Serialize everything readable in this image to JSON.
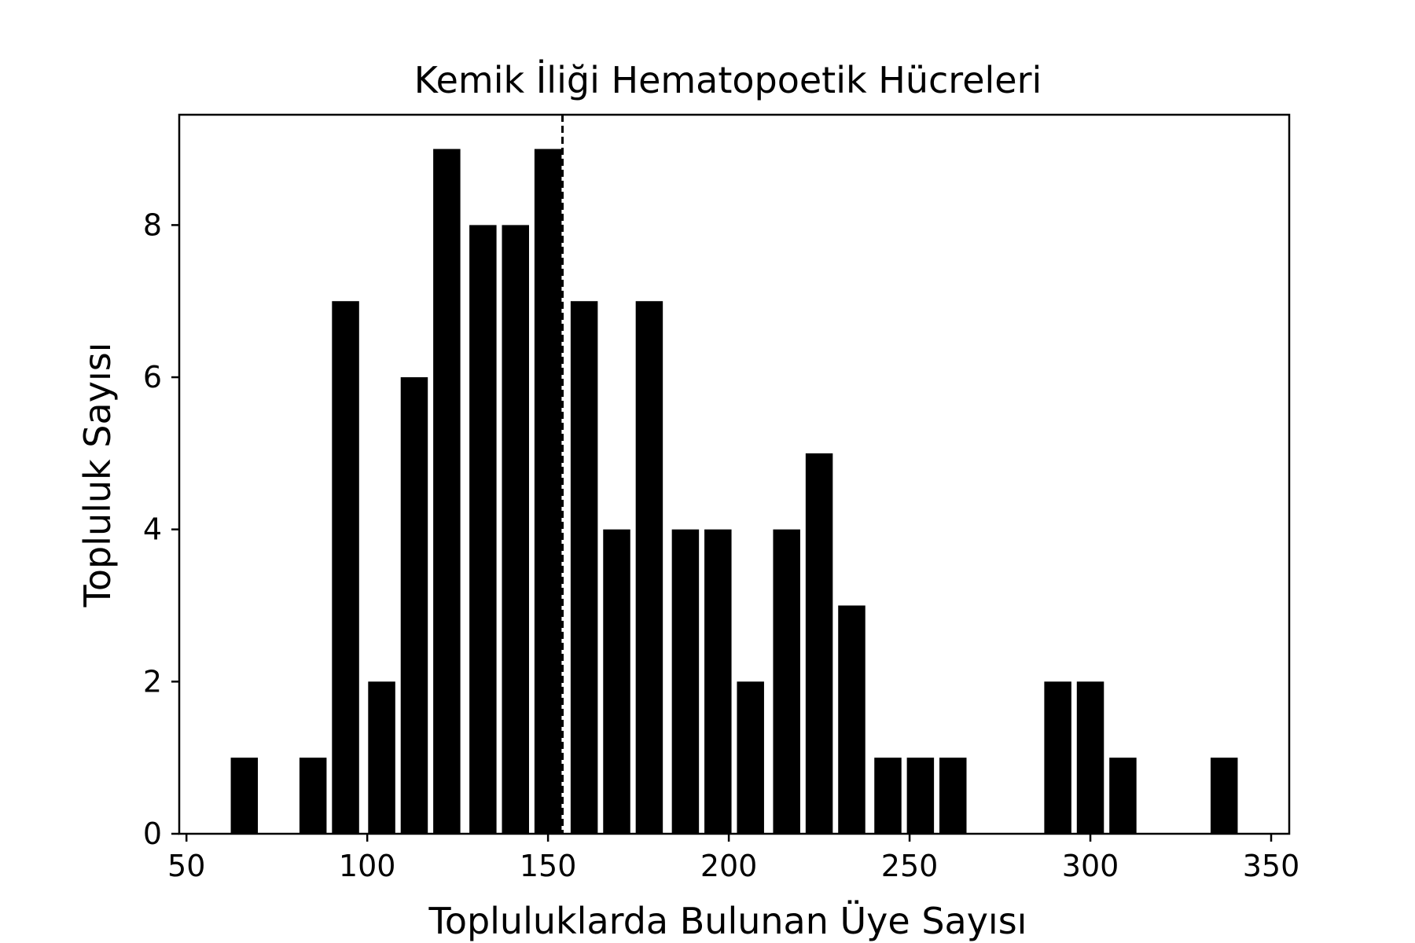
{
  "chart_data": {
    "type": "bar",
    "title": "Kemik İliği Hematopoetik Hücreleri",
    "xlabel": "Topluluklarda Bulunan Üye Sayısı",
    "ylabel": "Topluluk Sayısı",
    "xlim": [
      48,
      355
    ],
    "ylim": [
      0,
      9.45
    ],
    "xticks": [
      50,
      100,
      150,
      200,
      250,
      300,
      350
    ],
    "yticks": [
      0,
      2,
      4,
      6,
      8
    ],
    "bar_width": 7.5,
    "x": [
      66,
      85,
      94,
      104,
      113,
      122,
      132,
      141,
      150,
      160,
      169,
      178,
      188,
      197,
      206,
      216,
      225,
      234,
      244,
      253,
      262,
      291,
      300,
      309,
      337
    ],
    "values": [
      1,
      1,
      7,
      2,
      6,
      9,
      8,
      8,
      9,
      7,
      4,
      7,
      4,
      4,
      2,
      4,
      5,
      3,
      1,
      1,
      1,
      2,
      2,
      1,
      1
    ],
    "vline": 154,
    "grid": false,
    "bar_color": "#000000",
    "vline_color": "#000000"
  }
}
